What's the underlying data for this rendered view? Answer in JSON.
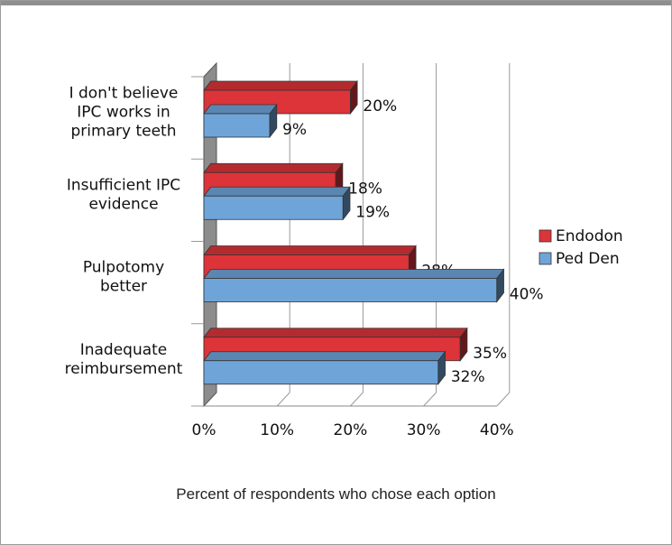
{
  "chart_data": {
    "type": "bar",
    "orientation": "horizontal",
    "categories": [
      [
        "I don't believe",
        "IPC works in",
        "primary teeth"
      ],
      [
        "Insufficient IPC",
        "evidence"
      ],
      [
        "Pulpotomy",
        "better"
      ],
      [
        "Inadequate",
        "reimbursement"
      ]
    ],
    "series": [
      {
        "name": "Endodon",
        "values": [
          20,
          18,
          28,
          35
        ],
        "labels": [
          "20%",
          "18%",
          "28%",
          "35%"
        ]
      },
      {
        "name": "Ped Den",
        "values": [
          9,
          19,
          40,
          32
        ],
        "labels": [
          "9%",
          "19%",
          "40%",
          "32%"
        ]
      }
    ],
    "xlabel": "Percent of respondents who chose each option",
    "xlim": [
      0,
      40
    ],
    "xticks": [
      "0%",
      "10%",
      "20%",
      "30%",
      "40%"
    ],
    "xtick_values": [
      0,
      10,
      20,
      30,
      40
    ],
    "grid": true,
    "legend_position": "right",
    "colors": {
      "Endodon": "#dc3439",
      "Ped Den": "#6fa4d8"
    }
  }
}
